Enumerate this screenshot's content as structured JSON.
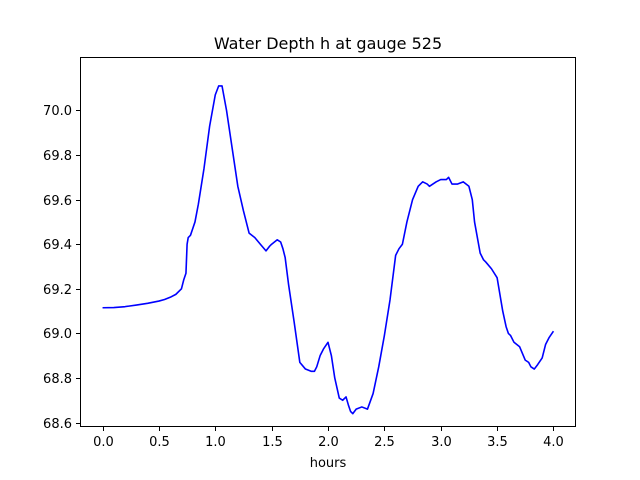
{
  "chart_data": {
    "type": "line",
    "title": "Water Depth h at gauge 525",
    "xlabel": "hours",
    "ylabel": "",
    "xlim": [
      -0.2,
      4.2
    ],
    "ylim": [
      68.58,
      70.24
    ],
    "xticks": [
      0.0,
      0.5,
      1.0,
      1.5,
      2.0,
      2.5,
      3.0,
      3.5,
      4.0
    ],
    "xtick_labels": [
      "0.0",
      "0.5",
      "1.0",
      "1.5",
      "2.0",
      "2.5",
      "3.0",
      "3.5",
      "4.0"
    ],
    "yticks": [
      68.6,
      68.8,
      69.0,
      69.2,
      69.4,
      69.6,
      69.8,
      70.0
    ],
    "ytick_labels": [
      "68.6",
      "68.8",
      "69.0",
      "69.2",
      "69.4",
      "69.6",
      "69.8",
      "70.0"
    ],
    "grid": false,
    "series": [
      {
        "color": "#0000ff",
        "x": [
          0.0,
          0.1,
          0.2,
          0.3,
          0.4,
          0.5,
          0.55,
          0.6,
          0.65,
          0.7,
          0.72,
          0.74,
          0.75,
          0.76,
          0.78,
          0.8,
          0.82,
          0.85,
          0.9,
          0.95,
          1.0,
          1.03,
          1.06,
          1.1,
          1.15,
          1.2,
          1.25,
          1.3,
          1.35,
          1.4,
          1.45,
          1.48,
          1.5,
          1.55,
          1.58,
          1.6,
          1.62,
          1.65,
          1.7,
          1.75,
          1.8,
          1.85,
          1.88,
          1.9,
          1.93,
          1.96,
          2.0,
          2.03,
          2.06,
          2.1,
          2.13,
          2.16,
          2.18,
          2.2,
          2.22,
          2.25,
          2.3,
          2.35,
          2.4,
          2.45,
          2.5,
          2.55,
          2.6,
          2.63,
          2.66,
          2.7,
          2.75,
          2.8,
          2.84,
          2.88,
          2.9,
          2.93,
          2.96,
          3.0,
          3.05,
          3.07,
          3.1,
          3.15,
          3.2,
          3.25,
          3.28,
          3.3,
          3.35,
          3.38,
          3.4,
          3.45,
          3.5,
          3.55,
          3.58,
          3.6,
          3.62,
          3.65,
          3.7,
          3.75,
          3.78,
          3.8,
          3.83,
          3.86,
          3.9,
          3.93,
          3.96,
          4.0
        ],
        "y": [
          69.115,
          69.116,
          69.12,
          69.127,
          69.135,
          69.145,
          69.152,
          69.162,
          69.175,
          69.2,
          69.24,
          69.27,
          69.4,
          69.43,
          69.44,
          69.47,
          69.5,
          69.58,
          69.74,
          69.93,
          70.07,
          70.11,
          70.11,
          70.0,
          69.83,
          69.66,
          69.55,
          69.45,
          69.43,
          69.4,
          69.37,
          69.39,
          69.4,
          69.42,
          69.41,
          69.38,
          69.34,
          69.22,
          69.05,
          68.87,
          68.84,
          68.83,
          68.83,
          68.85,
          68.9,
          68.93,
          68.96,
          68.9,
          68.8,
          68.71,
          68.7,
          68.715,
          68.68,
          68.65,
          68.64,
          68.66,
          68.67,
          68.66,
          68.73,
          68.85,
          68.99,
          69.15,
          69.35,
          69.38,
          69.4,
          69.5,
          69.6,
          69.66,
          69.68,
          69.67,
          69.66,
          69.67,
          69.68,
          69.69,
          69.69,
          69.7,
          69.67,
          69.67,
          69.68,
          69.66,
          69.6,
          69.5,
          69.36,
          69.33,
          69.32,
          69.29,
          69.25,
          69.1,
          69.03,
          69.0,
          68.99,
          68.96,
          68.94,
          68.88,
          68.87,
          68.85,
          68.84,
          68.86,
          68.89,
          68.95,
          68.98,
          69.01
        ]
      }
    ]
  }
}
